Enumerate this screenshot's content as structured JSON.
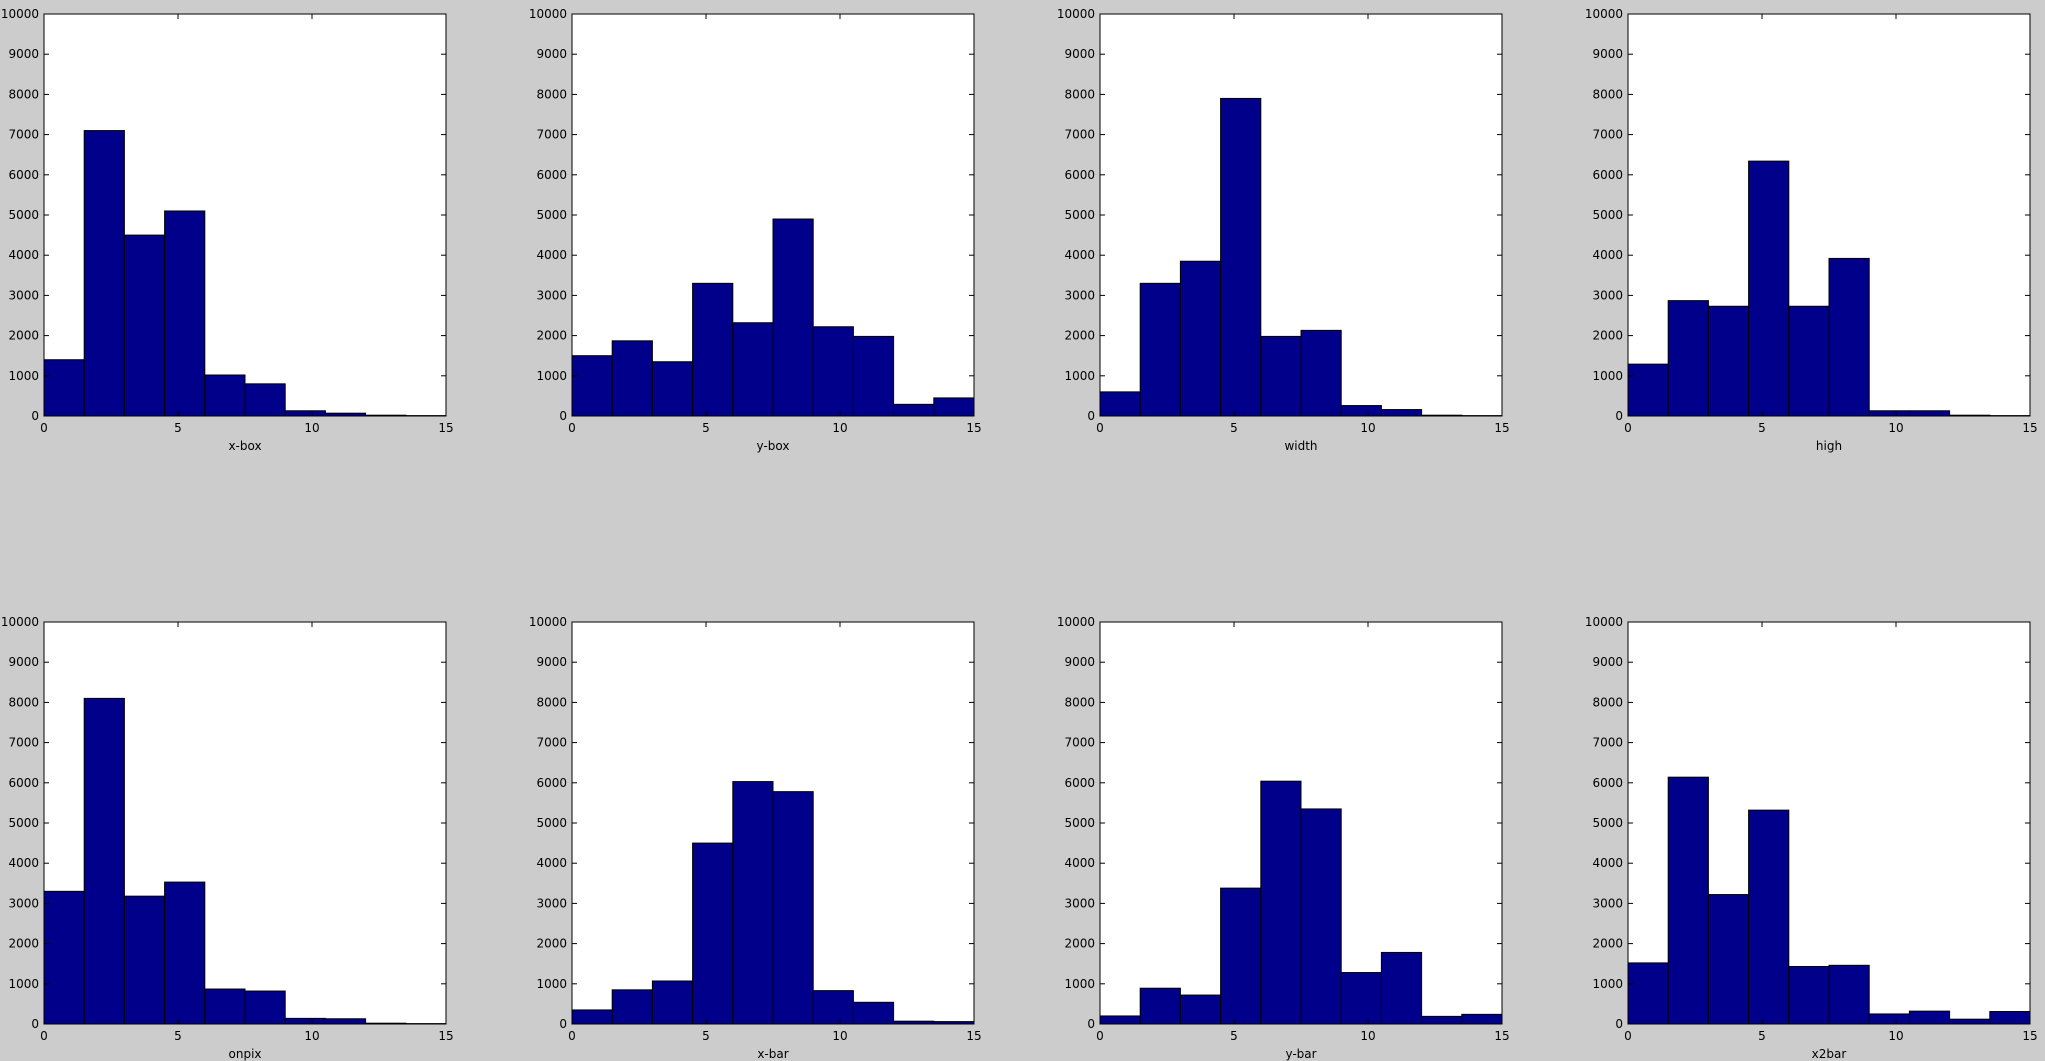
{
  "chart_data": [
    {
      "type": "bar",
      "xlabel": "x-box",
      "bin_edges": [
        0,
        1.5,
        3,
        4.5,
        6,
        7.5,
        9,
        10.5,
        12,
        13.5,
        15
      ],
      "values": [
        1400,
        7100,
        4500,
        5100,
        1020,
        800,
        130,
        70,
        20,
        10
      ],
      "xlim": [
        0,
        15
      ],
      "ylim": [
        0,
        10000
      ],
      "xticks": [
        0,
        5,
        10,
        15
      ],
      "yticks": [
        0,
        1000,
        2000,
        3000,
        4000,
        5000,
        6000,
        7000,
        8000,
        9000,
        10000
      ]
    },
    {
      "type": "bar",
      "xlabel": "y-box",
      "bin_edges": [
        0,
        1.5,
        3,
        4.5,
        6,
        7.5,
        9,
        10.5,
        12,
        13.5,
        15
      ],
      "values": [
        1500,
        1870,
        1350,
        3300,
        2320,
        4900,
        2220,
        1980,
        290,
        450
      ],
      "xlim": [
        0,
        15
      ],
      "ylim": [
        0,
        10000
      ],
      "xticks": [
        0,
        5,
        10,
        15
      ],
      "yticks": [
        0,
        1000,
        2000,
        3000,
        4000,
        5000,
        6000,
        7000,
        8000,
        9000,
        10000
      ]
    },
    {
      "type": "bar",
      "xlabel": "width",
      "bin_edges": [
        0,
        1.5,
        3,
        4.5,
        6,
        7.5,
        9,
        10.5,
        12,
        13.5,
        15
      ],
      "values": [
        600,
        3300,
        3850,
        7900,
        1980,
        2130,
        260,
        160,
        20,
        10
      ],
      "xlim": [
        0,
        15
      ],
      "ylim": [
        0,
        10000
      ],
      "xticks": [
        0,
        5,
        10,
        15
      ],
      "yticks": [
        0,
        1000,
        2000,
        3000,
        4000,
        5000,
        6000,
        7000,
        8000,
        9000,
        10000
      ]
    },
    {
      "type": "bar",
      "xlabel": "high",
      "bin_edges": [
        0,
        1.5,
        3,
        4.5,
        6,
        7.5,
        9,
        10.5,
        12,
        13.5,
        15
      ],
      "values": [
        1290,
        2870,
        2730,
        6340,
        2730,
        3920,
        130,
        130,
        20,
        10
      ],
      "xlim": [
        0,
        15
      ],
      "ylim": [
        0,
        10000
      ],
      "xticks": [
        0,
        5,
        10,
        15
      ],
      "yticks": [
        0,
        1000,
        2000,
        3000,
        4000,
        5000,
        6000,
        7000,
        8000,
        9000,
        10000
      ]
    },
    {
      "type": "bar",
      "xlabel": "onpix",
      "bin_edges": [
        0,
        1.5,
        3,
        4.5,
        6,
        7.5,
        9,
        10.5,
        12,
        13.5,
        15
      ],
      "values": [
        3300,
        8100,
        3180,
        3530,
        870,
        820,
        140,
        130,
        20,
        10
      ],
      "xlim": [
        0,
        15
      ],
      "ylim": [
        0,
        10000
      ],
      "xticks": [
        0,
        5,
        10,
        15
      ],
      "yticks": [
        0,
        1000,
        2000,
        3000,
        4000,
        5000,
        6000,
        7000,
        8000,
        9000,
        10000
      ]
    },
    {
      "type": "bar",
      "xlabel": "x-bar",
      "bin_edges": [
        0,
        1.5,
        3,
        4.5,
        6,
        7.5,
        9,
        10.5,
        12,
        13.5,
        15
      ],
      "values": [
        350,
        850,
        1070,
        4500,
        6030,
        5780,
        830,
        540,
        70,
        60
      ],
      "xlim": [
        0,
        15
      ],
      "ylim": [
        0,
        10000
      ],
      "xticks": [
        0,
        5,
        10,
        15
      ],
      "yticks": [
        0,
        1000,
        2000,
        3000,
        4000,
        5000,
        6000,
        7000,
        8000,
        9000,
        10000
      ]
    },
    {
      "type": "bar",
      "xlabel": "y-bar",
      "bin_edges": [
        0,
        1.5,
        3,
        4.5,
        6,
        7.5,
        9,
        10.5,
        12,
        13.5,
        15
      ],
      "values": [
        200,
        890,
        720,
        3380,
        6040,
        5350,
        1280,
        1780,
        190,
        240
      ],
      "xlim": [
        0,
        15
      ],
      "ylim": [
        0,
        10000
      ],
      "xticks": [
        0,
        5,
        10,
        15
      ],
      "yticks": [
        0,
        1000,
        2000,
        3000,
        4000,
        5000,
        6000,
        7000,
        8000,
        9000,
        10000
      ]
    },
    {
      "type": "bar",
      "xlabel": "x2bar",
      "bin_edges": [
        0,
        1.5,
        3,
        4.5,
        6,
        7.5,
        9,
        10.5,
        12,
        13.5,
        15
      ],
      "values": [
        1520,
        6140,
        3220,
        5320,
        1430,
        1460,
        250,
        320,
        120,
        310
      ],
      "xlim": [
        0,
        15
      ],
      "ylim": [
        0,
        10000
      ],
      "xticks": [
        0,
        5,
        10,
        15
      ],
      "yticks": [
        0,
        1000,
        2000,
        3000,
        4000,
        5000,
        6000,
        7000,
        8000,
        9000,
        10000
      ]
    }
  ],
  "colors": {
    "bar_fill": "#00008b",
    "bar_edge": "#000000",
    "figure_bg": "#cccccc",
    "axes_bg": "#ffffff"
  }
}
